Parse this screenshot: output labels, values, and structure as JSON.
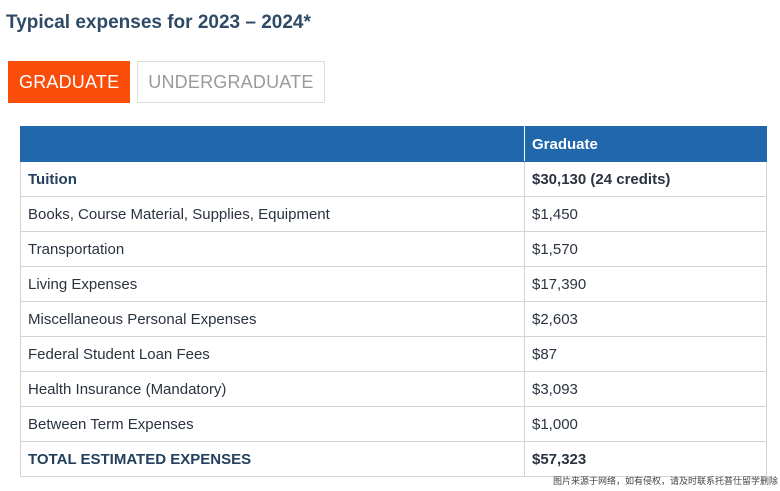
{
  "page": {
    "title": "Typical expenses for 2023 – 2024*"
  },
  "tabs": [
    {
      "label": "GRADUATE",
      "active": true
    },
    {
      "label": "UNDERGRADUATE",
      "active": false
    }
  ],
  "table": {
    "header": {
      "col1": "",
      "col2": "Graduate"
    },
    "rows": [
      {
        "label": "Tuition",
        "value": "$30,130 (24 credits)"
      },
      {
        "label": "Books, Course Material, Supplies, Equipment",
        "value": "$1,450"
      },
      {
        "label": "Transportation",
        "value": "$1,570"
      },
      {
        "label": "Living Expenses",
        "value": "$17,390"
      },
      {
        "label": "Miscellaneous Personal Expenses",
        "value": "$2,603"
      },
      {
        "label": "Federal Student Loan Fees",
        "value": "$87"
      },
      {
        "label": "Health Insurance (Mandatory)",
        "value": "$3,093"
      },
      {
        "label": "Between Term Expenses",
        "value": "$1,000"
      },
      {
        "label": "TOTAL ESTIMATED EXPENSES",
        "value": "$57,323"
      }
    ]
  },
  "watermark": "图片来源于网络，如有侵权，请及时联系托普仕留学删除",
  "colors": {
    "accent": "#fa4d0a",
    "header_blue": "#2167ab",
    "title": "#2e4a66"
  }
}
